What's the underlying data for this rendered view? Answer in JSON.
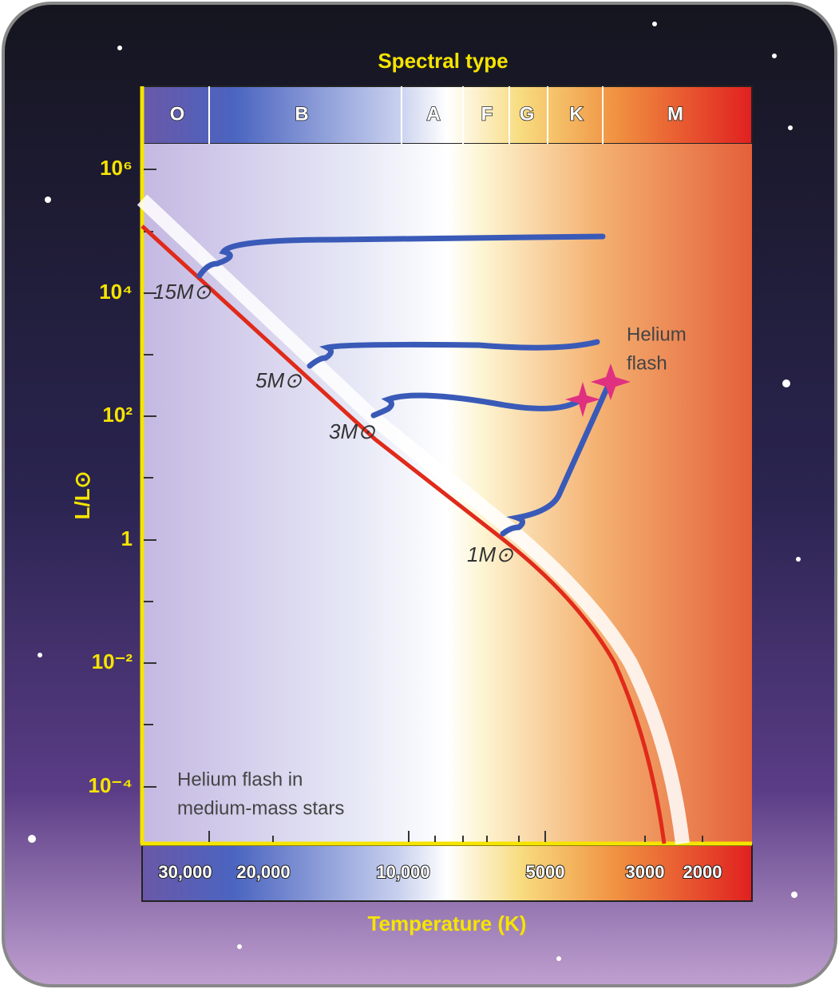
{
  "spectral_title": "Spectral type",
  "spectral_types": [
    "O",
    "B",
    "A",
    "F",
    "G",
    "K",
    "M"
  ],
  "luminosity_label": "L/L⊙",
  "luminosity_ticks": [
    "10⁶",
    "10⁴",
    "10²",
    "1",
    "10⁻²",
    "10⁻⁴"
  ],
  "temperature_label": "Temperature (K)",
  "temperature_ticks": [
    "30,000",
    "20,000",
    "10,000",
    "5000",
    "3000",
    "2000"
  ],
  "mass_labels": [
    "15M⊙",
    "5M⊙",
    "3M⊙",
    "1M⊙"
  ],
  "annotations": {
    "helium_flash": [
      "Helium",
      "flash"
    ],
    "caption": [
      "Helium flash in",
      "medium-mass stars"
    ]
  }
}
